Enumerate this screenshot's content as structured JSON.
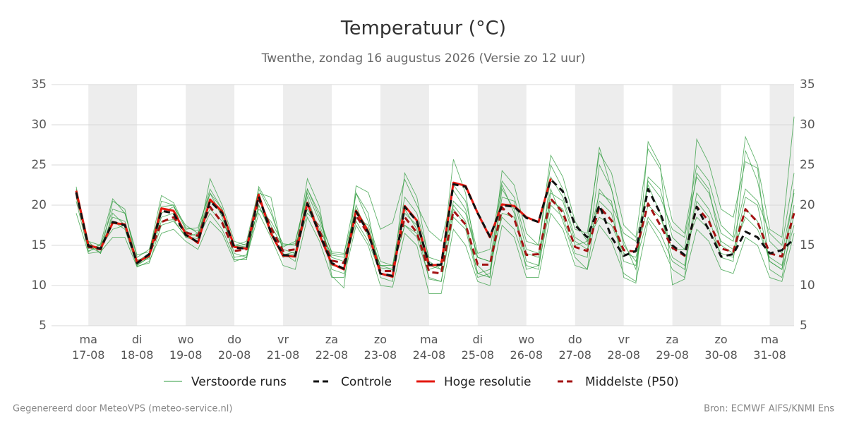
{
  "chart_data": {
    "type": "line",
    "title": "Temperatuur (°C)",
    "subtitle": "Twenthe, zondag 16 augustus 2026 (Versie zo 12 uur)",
    "categories": [
      null,
      [
        "ma",
        "17-08"
      ],
      null,
      null,
      null,
      [
        "di",
        "18-08"
      ],
      null,
      null,
      null,
      [
        "wo",
        "19-08"
      ],
      null,
      null,
      null,
      [
        "do",
        "20-08"
      ],
      null,
      null,
      null,
      [
        "vr",
        "21-08"
      ],
      null,
      null,
      null,
      [
        "za",
        "22-08"
      ],
      null,
      null,
      null,
      [
        "zo",
        "23-08"
      ],
      null,
      null,
      null,
      [
        "ma",
        "24-08"
      ],
      null,
      null,
      null,
      [
        "di",
        "25-08"
      ],
      null,
      null,
      null,
      [
        "wo",
        "26-08"
      ],
      null,
      null,
      null,
      [
        "do",
        "27-08"
      ],
      null,
      null,
      null,
      [
        "vr",
        "28-08"
      ],
      null,
      null,
      null,
      [
        "za",
        "29-08"
      ],
      null,
      null,
      null,
      [
        "zo",
        "30-08"
      ],
      null,
      null,
      null,
      [
        "ma",
        "31-08"
      ],
      null,
      null
    ],
    "ylim": [
      5,
      35
    ],
    "yticks": [
      5,
      10,
      15,
      20,
      25,
      30,
      35
    ],
    "grid": true,
    "ensemble": {
      "name": "Verstoorde runs",
      "color": "#2e9b3c",
      "runs": [
        [
          22.0,
          15.5,
          15.0,
          19.5,
          19.0,
          13.5,
          14.5,
          19.8,
          20.0,
          17.0,
          17.2,
          21.5,
          19.5,
          15.0,
          15.5,
          22.0,
          19.0,
          15.0,
          15.2,
          22.0,
          18.5,
          14.0,
          13.8,
          21.5,
          18.0,
          13.0,
          12.5,
          21.0,
          19.0,
          13.5,
          13.0,
          22.5,
          20.5,
          14.0,
          14.5,
          23.0,
          21.0,
          15.5,
          15.0,
          25.0,
          22.0,
          17.0,
          16.5,
          26.5,
          24.0,
          17.5,
          16.0,
          27.0,
          24.5,
          18.0,
          16.5,
          25.0,
          23.0,
          17.5,
          16.0,
          28.5,
          25.0,
          17.0,
          16.0,
          31.0
        ],
        [
          19.0,
          14.0,
          14.2,
          16.0,
          16.0,
          12.3,
          13.0,
          16.5,
          17.0,
          15.5,
          14.5,
          18.0,
          16.5,
          13.0,
          13.5,
          19.0,
          16.0,
          12.5,
          12.0,
          18.5,
          15.5,
          11.0,
          11.0,
          17.5,
          15.0,
          10.0,
          9.8,
          16.5,
          15.0,
          9.0,
          9.0,
          17.0,
          15.0,
          10.5,
          10.0,
          17.5,
          16.0,
          11.0,
          11.0,
          19.0,
          17.0,
          12.5,
          12.0,
          17.5,
          15.5,
          11.5,
          10.5,
          18.0,
          15.5,
          12.0,
          11.0,
          17.0,
          15.5,
          12.0,
          11.5,
          16.0,
          15.0,
          11.0,
          10.5,
          16.5
        ],
        [
          21.0,
          15.0,
          14.0,
          20.5,
          19.5,
          12.5,
          13.5,
          20.5,
          20.0,
          16.0,
          15.5,
          23.3,
          20.0,
          15.5,
          15.0,
          21.5,
          21.0,
          14.0,
          13.0,
          22.0,
          19.0,
          12.0,
          11.5,
          21.5,
          19.0,
          11.0,
          10.5,
          24.0,
          21.0,
          13.0,
          12.0,
          25.7,
          21.5,
          12.5,
          11.0,
          24.3,
          22.5,
          16.5,
          15.0,
          26.2,
          23.5,
          18.0,
          15.5,
          27.2,
          22.0,
          15.5,
          12.0,
          23.5,
          22.0,
          16.0,
          14.5,
          24.0,
          22.0,
          15.0,
          14.0,
          21.0,
          20.0,
          13.0,
          12.0,
          22.0
        ],
        [
          20.5,
          14.3,
          14.8,
          17.0,
          17.5,
          13.0,
          14.0,
          18.5,
          19.0,
          16.8,
          16.0,
          21.5,
          18.5,
          14.0,
          13.5,
          20.0,
          16.5,
          13.5,
          14.0,
          19.0,
          17.5,
          13.5,
          13.0,
          20.0,
          16.0,
          12.5,
          12.0,
          17.5,
          16.0,
          11.0,
          10.5,
          18.5,
          17.0,
          11.0,
          11.5,
          21.0,
          20.5,
          14.5,
          14.0,
          22.0,
          18.0,
          13.5,
          12.0,
          22.0,
          20.0,
          16.5,
          15.5,
          22.5,
          19.0,
          13.5,
          12.5,
          21.5,
          19.5,
          15.5,
          14.5,
          18.5,
          17.0,
          13.5,
          12.5,
          20.0
        ],
        [
          21.5,
          15.2,
          14.5,
          18.5,
          18.0,
          13.2,
          13.3,
          19.0,
          19.8,
          17.5,
          16.5,
          20.5,
          19.0,
          14.8,
          15.2,
          21.0,
          17.5,
          14.8,
          15.5,
          21.5,
          18.0,
          14.2,
          14.0,
          19.5,
          17.0,
          12.5,
          12.5,
          19.0,
          17.5,
          12.0,
          12.5,
          20.5,
          19.0,
          13.5,
          13.0,
          18.5,
          17.0,
          12.5,
          12.0,
          21.5,
          20.5,
          15.5,
          14.5,
          20.5,
          19.0,
          13.0,
          12.5,
          23.0,
          21.0,
          17.0,
          16.0,
          23.5,
          21.5,
          16.5,
          15.5,
          22.0,
          20.5,
          16.5,
          15.0,
          24.0
        ],
        [
          22.3,
          14.6,
          15.0,
          18.0,
          17.0,
          12.4,
          12.8,
          17.5,
          18.0,
          16.2,
          15.8,
          19.0,
          17.0,
          13.5,
          13.8,
          20.0,
          16.8,
          13.8,
          14.2,
          21.0,
          16.5,
          12.5,
          12.2,
          18.0,
          15.5,
          11.5,
          11.2,
          19.5,
          17.0,
          10.8,
          10.5,
          19.5,
          17.5,
          11.5,
          11.0,
          22.0,
          19.5,
          13.0,
          12.5,
          20.0,
          18.5,
          14.0,
          13.5,
          25.0,
          22.0,
          15.0,
          13.0,
          18.5,
          16.5,
          13.0,
          12.0,
          20.5,
          18.5,
          13.5,
          13.0,
          26.8,
          23.0,
          15.5,
          14.0,
          21.5
        ],
        [
          21.0,
          15.5,
          14.0,
          19.0,
          17.5,
          12.6,
          13.5,
          18.0,
          18.2,
          16.0,
          16.5,
          19.5,
          18.0,
          15.0,
          14.8,
          19.5,
          18.0,
          15.2,
          15.0,
          19.5,
          17.0,
          13.8,
          13.5,
          18.5,
          17.5,
          12.2,
          12.0,
          17.5,
          16.5,
          12.5,
          12.0,
          20.0,
          18.0,
          11.5,
          12.0,
          19.0,
          18.5,
          14.0,
          13.5,
          20.5,
          19.5,
          15.0,
          15.5,
          18.5,
          17.5,
          14.0,
          13.5,
          20.0,
          18.5,
          14.5,
          14.5,
          18.5,
          17.0,
          14.0,
          13.5,
          19.5,
          18.0,
          13.0,
          12.0,
          17.5
        ],
        [
          21.8,
          14.2,
          15.2,
          20.8,
          19.0,
          13.8,
          14.2,
          21.2,
          20.3,
          17.2,
          16.8,
          22.0,
          19.5,
          13.2,
          13.2,
          22.3,
          19.5,
          14.5,
          14.0,
          23.3,
          19.8,
          11.2,
          9.7,
          22.4,
          21.6,
          17.0,
          17.8,
          23.2,
          20.0,
          16.8,
          15.5,
          21.8,
          19.5,
          13.5,
          13.0,
          22.5,
          19.0,
          12.0,
          12.5,
          23.5,
          21.0,
          16.0,
          15.0,
          21.5,
          20.5,
          11.0,
          10.3,
          27.9,
          25.0,
          10.1,
          10.8,
          28.2,
          25.2,
          19.5,
          18.5,
          25.4,
          24.6,
          12.0,
          11.0,
          19.0
        ]
      ]
    },
    "series": [
      {
        "name": "Controle",
        "color": "#111111",
        "dash": true,
        "values": [
          21.6,
          14.9,
          14.6,
          17.9,
          17.5,
          12.8,
          13.9,
          19.3,
          19.0,
          16.3,
          15.4,
          20.5,
          19.0,
          14.7,
          14.6,
          21.1,
          16.6,
          13.8,
          13.7,
          20.2,
          16.4,
          12.8,
          12.1,
          19.2,
          16.6,
          11.5,
          11.2,
          19.8,
          18.0,
          12.6,
          12.6,
          22.6,
          22.3,
          19.0,
          16.1,
          20.0,
          19.8,
          18.4,
          17.9,
          23.2,
          21.7,
          17.5,
          16.0,
          20.0,
          16.0,
          13.7,
          14.3,
          22.0,
          19.0,
          15.0,
          13.8,
          19.8,
          16.9,
          13.6,
          13.9,
          16.7,
          16.0,
          14.0,
          14.4,
          15.8
        ]
      },
      {
        "name": "Hoge resolutie",
        "color": "#e3170f",
        "dash": false,
        "values": [
          21.8,
          15.0,
          14.6,
          17.8,
          17.6,
          12.9,
          13.7,
          19.6,
          19.3,
          16.4,
          15.3,
          20.7,
          19.2,
          14.8,
          14.6,
          21.3,
          16.5,
          13.7,
          13.6,
          20.3,
          16.3,
          12.7,
          12.0,
          19.3,
          16.7,
          11.5,
          11.1,
          19.9,
          18.1,
          12.5,
          12.6,
          22.8,
          22.4,
          19.0,
          16.0,
          20.1,
          19.9,
          18.5,
          17.9,
          23.3,
          null,
          null,
          null,
          null,
          null,
          null,
          null,
          null,
          null,
          null,
          null,
          null,
          null,
          null,
          null,
          null,
          null,
          null,
          null,
          null
        ]
      },
      {
        "name": "Middelste (P50)",
        "color": "#a31212",
        "dash": true,
        "values": [
          21.5,
          14.8,
          14.5,
          17.9,
          17.6,
          12.8,
          13.8,
          17.9,
          18.5,
          16.6,
          16.2,
          19.8,
          17.8,
          14.3,
          14.5,
          20.8,
          17.2,
          14.3,
          14.5,
          20.2,
          16.8,
          13.1,
          12.8,
          18.7,
          16.4,
          11.8,
          11.8,
          18.5,
          16.6,
          11.7,
          11.5,
          19.3,
          17.6,
          12.6,
          12.6,
          19.7,
          18.3,
          13.8,
          13.9,
          20.8,
          19.1,
          14.8,
          14.3,
          19.8,
          18.1,
          14.4,
          14.2,
          20.2,
          17.5,
          14.7,
          13.7,
          19.8,
          18.0,
          14.6,
          14.2,
          19.5,
          17.9,
          14.0,
          13.6,
          19.0
        ]
      }
    ],
    "footer_left": "Gegenereerd door MeteoVPS (meteo-service.nl)",
    "footer_right": "Bron: ECMWF AIFS/KNMI Ens"
  }
}
